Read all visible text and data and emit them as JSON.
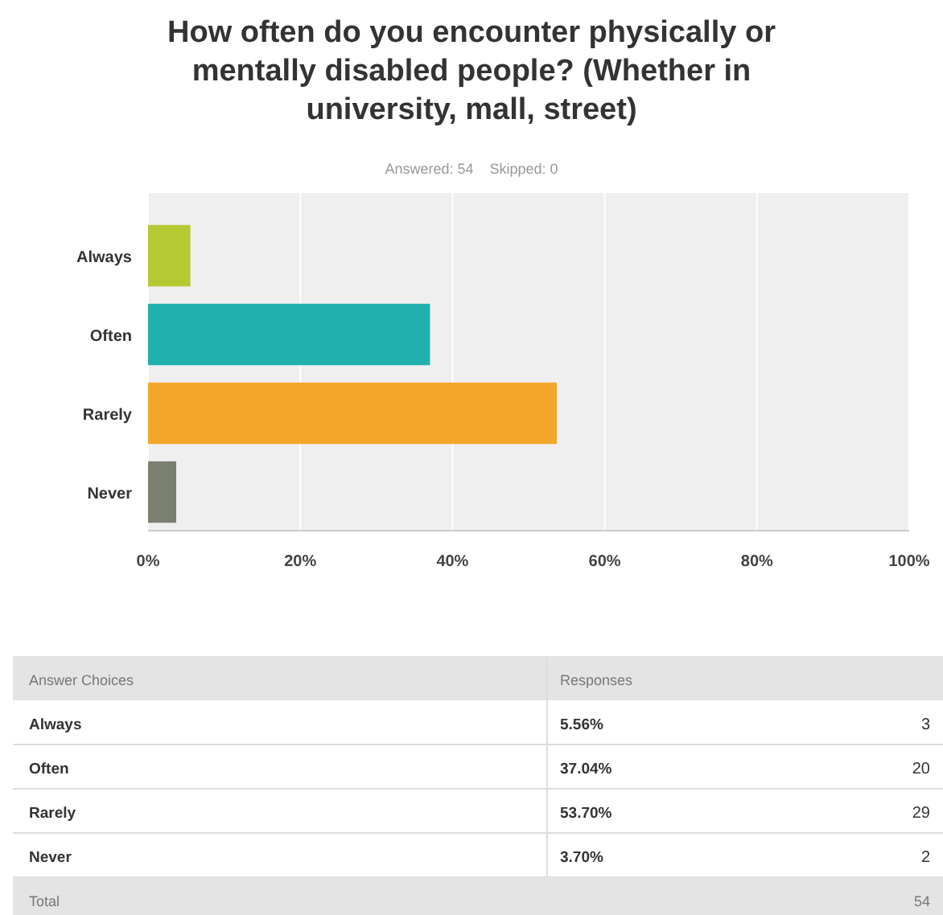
{
  "chart_data": [
    {
      "type": "bar",
      "orientation": "horizontal",
      "title": "How often do you encounter physically or mentally disabled people? (Whether in university, mall, street)",
      "subtitle": "Answered: 54    Skipped: 0",
      "categories": [
        "Always",
        "Often",
        "Rarely",
        "Never"
      ],
      "values": [
        5.56,
        37.04,
        53.7,
        3.7
      ],
      "colors": [
        "#b5c932",
        "#21b1ad",
        "#f4a62a",
        "#7b7f70"
      ],
      "xlim": [
        0,
        100
      ],
      "xticks": [
        {
          "value": 0,
          "label": "0%"
        },
        {
          "value": 20,
          "label": "20%"
        },
        {
          "value": 40,
          "label": "40%"
        },
        {
          "value": 60,
          "label": "60%"
        },
        {
          "value": 80,
          "label": "80%"
        },
        {
          "value": 100,
          "label": "100%"
        }
      ],
      "grid": "x"
    },
    {
      "type": "other",
      "categories": [
        "Always",
        "Often",
        "Rarely",
        "Never"
      ],
      "series": [
        {
          "values": [
            5.56,
            37.04,
            53.7,
            3.7
          ],
          "value_labels": [
            "5.56%",
            "37.04%",
            "53.70%",
            "3.70%"
          ]
        },
        {
          "values": [
            3,
            20,
            29,
            2
          ]
        }
      ],
      "data_labels": true,
      "annotations": [
        "Answer Choices",
        "Responses",
        "Total"
      ],
      "totals": [
        "54"
      ]
    }
  ]
}
